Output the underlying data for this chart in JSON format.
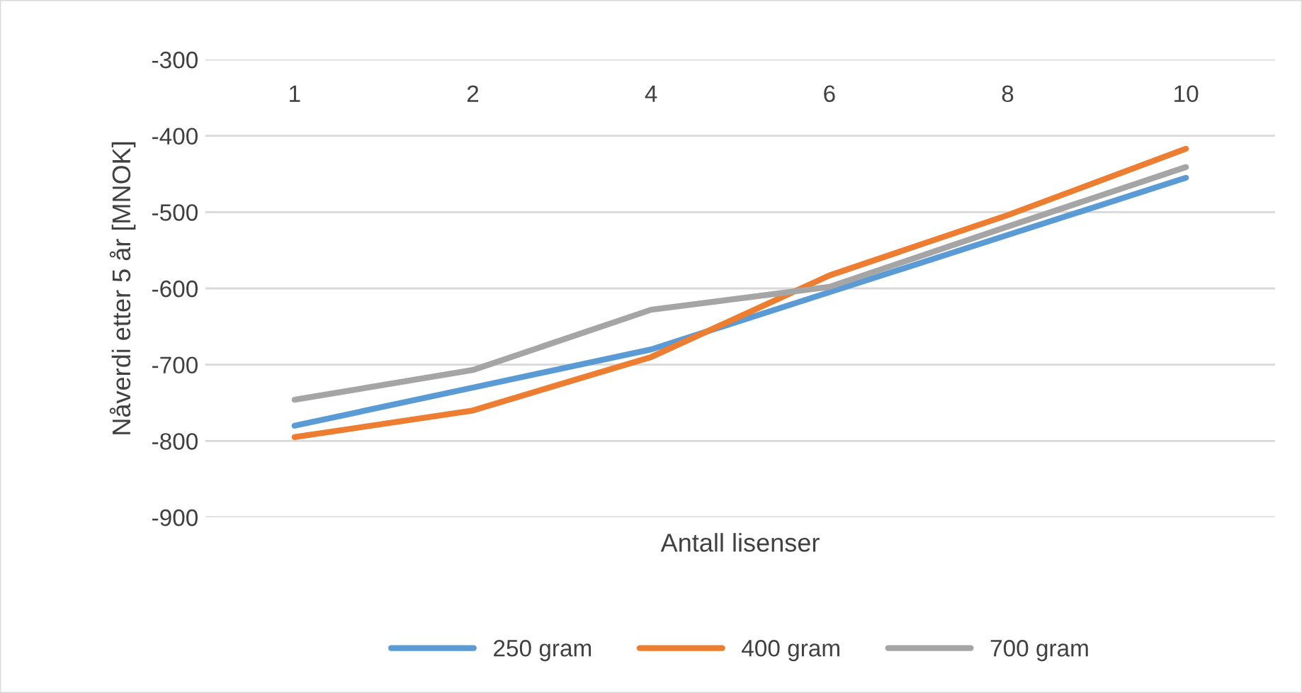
{
  "chart_data": {
    "type": "line",
    "xlabel": "Antall lisenser",
    "ylabel": "Nåverdi etter 5 år [MNOK]",
    "categories": [
      "1",
      "2",
      "4",
      "6",
      "8",
      "10"
    ],
    "series": [
      {
        "name": "250 gram",
        "color": "#5b9bd5",
        "values": [
          -780,
          -730,
          -680,
          -605,
          -530,
          -455
        ]
      },
      {
        "name": "400 gram",
        "color": "#ed7d31",
        "values": [
          -795,
          -760,
          -690,
          -583,
          -504,
          -417
        ]
      },
      {
        "name": "700 gram",
        "color": "#a5a5a5",
        "values": [
          -746,
          -707,
          -628,
          -598,
          -519,
          -441
        ]
      }
    ],
    "ylim": [
      -900,
      -300
    ],
    "yticks": [
      -300,
      -400,
      -500,
      -600,
      -700,
      -800,
      -900
    ],
    "grid": "y",
    "legend": "bottom",
    "marker": "none",
    "line_style": "solid"
  }
}
